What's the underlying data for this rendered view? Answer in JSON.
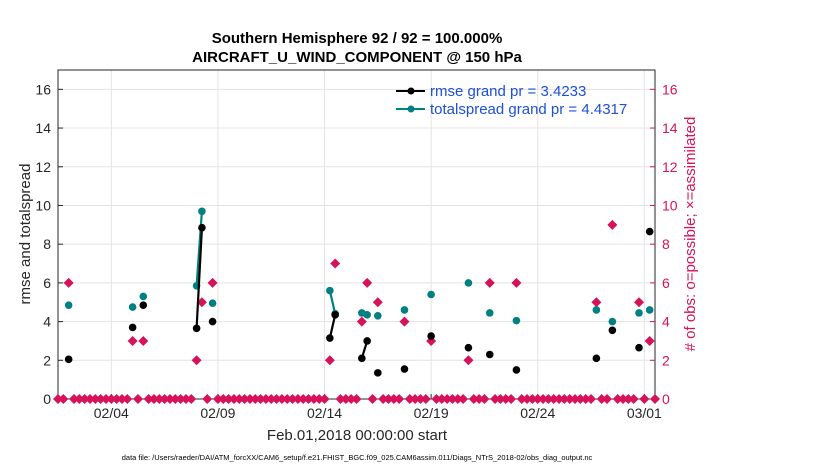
{
  "chart_data": {
    "type": "scatter",
    "title": "Southern Hemisphere 92 / 92 = 100.000%",
    "subtitle": "AIRCRAFT_U_WIND_COMPONENT @ 150 hPa",
    "xlabel": "Feb.01,2018 00:00:00 start",
    "ylabel": "rmse and totalspread",
    "ylabel_right": "# of obs: o=possible; ×=assimilated",
    "footer": "data file: /Users/raeder/DAI/ATM_forcXX/CAM6_setup/f.e21.FHIST_BGC.f09_025.CAM6assim.011/Diags_NTrS_2018-02/obs_diag_output.nc",
    "xlim": [
      1.5,
      29.5
    ],
    "ylim": [
      0,
      17
    ],
    "ylim_right": [
      0,
      17
    ],
    "x_ticks": [
      {
        "value": 4,
        "label": "02/04"
      },
      {
        "value": 9,
        "label": "02/09"
      },
      {
        "value": 14,
        "label": "02/14"
      },
      {
        "value": 19,
        "label": "02/19"
      },
      {
        "value": 24,
        "label": "02/24"
      },
      {
        "value": 29,
        "label": "03/01"
      }
    ],
    "y_ticks": [
      "0",
      "2",
      "4",
      "6",
      "8",
      "10",
      "12",
      "14",
      "16"
    ],
    "y_ticks_right": [
      "0",
      "2",
      "4",
      "6",
      "8",
      "10",
      "12",
      "14",
      "16"
    ],
    "grid": true,
    "legend_position": "top-right",
    "colors": {
      "rmse": "#000000",
      "totalspread": "#008080",
      "obs": "#d6125a"
    },
    "series": [
      {
        "name": "rmse grand pr = 3.4233",
        "key": "rmse",
        "points": [
          [
            2.0,
            2.05
          ],
          [
            5.0,
            3.7
          ],
          [
            5.5,
            4.85
          ],
          [
            8.0,
            3.65
          ],
          [
            8.25,
            8.85
          ],
          [
            8.75,
            4.0
          ],
          [
            14.25,
            3.15
          ],
          [
            14.5,
            4.35
          ],
          [
            15.75,
            2.1
          ],
          [
            16.0,
            3.0
          ],
          [
            16.5,
            1.35
          ],
          [
            17.75,
            1.55
          ],
          [
            19.0,
            3.25
          ],
          [
            20.75,
            2.65
          ],
          [
            21.75,
            2.3
          ],
          [
            23.0,
            1.5
          ],
          [
            26.75,
            2.1
          ],
          [
            27.5,
            3.55
          ],
          [
            28.75,
            2.65
          ],
          [
            29.25,
            8.65
          ]
        ],
        "lines": [
          [
            [
              8.0,
              3.65
            ],
            [
              8.25,
              8.85
            ]
          ],
          [
            [
              14.25,
              3.15
            ],
            [
              14.5,
              4.35
            ]
          ],
          [
            [
              15.75,
              2.1
            ],
            [
              16.0,
              3.0
            ]
          ]
        ]
      },
      {
        "name": "totalspread grand pr = 4.4317",
        "key": "totalspread",
        "points": [
          [
            2.0,
            4.85
          ],
          [
            5.0,
            4.75
          ],
          [
            5.5,
            5.3
          ],
          [
            8.0,
            5.85
          ],
          [
            8.25,
            9.7
          ],
          [
            8.75,
            4.95
          ],
          [
            14.25,
            5.6
          ],
          [
            14.5,
            4.4
          ],
          [
            15.75,
            4.45
          ],
          [
            16.0,
            4.35
          ],
          [
            16.5,
            4.3
          ],
          [
            17.75,
            4.6
          ],
          [
            19.0,
            5.4
          ],
          [
            20.75,
            6.0
          ],
          [
            21.75,
            4.45
          ],
          [
            23.0,
            4.05
          ],
          [
            26.75,
            4.6
          ],
          [
            27.5,
            4.0
          ],
          [
            28.75,
            4.45
          ],
          [
            29.25,
            4.6
          ]
        ],
        "lines": [
          [
            [
              8.0,
              5.85
            ],
            [
              8.25,
              9.7
            ]
          ],
          [
            [
              14.25,
              5.6
            ],
            [
              14.5,
              4.4
            ]
          ],
          [
            [
              15.75,
              4.45
            ],
            [
              16.0,
              4.35
            ]
          ]
        ]
      },
      {
        "name": "# of obs possible / assimilated",
        "key": "obs",
        "axis": "right",
        "points": [
          [
            1.5,
            0
          ],
          [
            1.75,
            0
          ],
          [
            2.0,
            6
          ],
          [
            2.25,
            0
          ],
          [
            2.5,
            0
          ],
          [
            2.75,
            0
          ],
          [
            3.0,
            0
          ],
          [
            3.25,
            0
          ],
          [
            3.5,
            0
          ],
          [
            3.75,
            0
          ],
          [
            4.0,
            0
          ],
          [
            4.25,
            0
          ],
          [
            4.5,
            0
          ],
          [
            4.75,
            0
          ],
          [
            5.0,
            3
          ],
          [
            5.25,
            0
          ],
          [
            5.5,
            3
          ],
          [
            5.75,
            0
          ],
          [
            6.0,
            0
          ],
          [
            6.25,
            0
          ],
          [
            6.5,
            0
          ],
          [
            6.75,
            0
          ],
          [
            7.0,
            0
          ],
          [
            7.25,
            0
          ],
          [
            7.5,
            0
          ],
          [
            7.75,
            0
          ],
          [
            8.0,
            2
          ],
          [
            8.25,
            5
          ],
          [
            8.5,
            0
          ],
          [
            8.75,
            6
          ],
          [
            9.0,
            0
          ],
          [
            9.25,
            0
          ],
          [
            9.5,
            0
          ],
          [
            9.75,
            0
          ],
          [
            10.0,
            0
          ],
          [
            10.25,
            0
          ],
          [
            10.5,
            0
          ],
          [
            10.75,
            0
          ],
          [
            11.0,
            0
          ],
          [
            11.25,
            0
          ],
          [
            11.5,
            0
          ],
          [
            11.75,
            0
          ],
          [
            12.0,
            0
          ],
          [
            12.25,
            0
          ],
          [
            12.5,
            0
          ],
          [
            12.75,
            0
          ],
          [
            13.0,
            0
          ],
          [
            13.25,
            0
          ],
          [
            13.5,
            0
          ],
          [
            13.75,
            0
          ],
          [
            14.0,
            0
          ],
          [
            14.25,
            2
          ],
          [
            14.5,
            7
          ],
          [
            14.75,
            0
          ],
          [
            15.0,
            0
          ],
          [
            15.25,
            0
          ],
          [
            15.5,
            0
          ],
          [
            15.75,
            4
          ],
          [
            16.0,
            6
          ],
          [
            16.25,
            0
          ],
          [
            16.5,
            5
          ],
          [
            16.75,
            0
          ],
          [
            17.0,
            0
          ],
          [
            17.25,
            0
          ],
          [
            17.5,
            0
          ],
          [
            17.75,
            4
          ],
          [
            18.0,
            0
          ],
          [
            18.25,
            0
          ],
          [
            18.5,
            0
          ],
          [
            18.75,
            0
          ],
          [
            19.0,
            3
          ],
          [
            19.25,
            0
          ],
          [
            19.5,
            0
          ],
          [
            19.75,
            0
          ],
          [
            20.0,
            0
          ],
          [
            20.25,
            0
          ],
          [
            20.5,
            0
          ],
          [
            20.75,
            2
          ],
          [
            21.0,
            0
          ],
          [
            21.25,
            0
          ],
          [
            21.5,
            0
          ],
          [
            21.75,
            6
          ],
          [
            22.0,
            0
          ],
          [
            22.25,
            0
          ],
          [
            22.5,
            0
          ],
          [
            22.75,
            0
          ],
          [
            23.0,
            6
          ],
          [
            23.25,
            0
          ],
          [
            23.5,
            0
          ],
          [
            23.75,
            0
          ],
          [
            24.0,
            0
          ],
          [
            24.25,
            0
          ],
          [
            24.5,
            0
          ],
          [
            24.75,
            0
          ],
          [
            25.0,
            0
          ],
          [
            25.25,
            0
          ],
          [
            25.5,
            0
          ],
          [
            25.75,
            0
          ],
          [
            26.0,
            0
          ],
          [
            26.25,
            0
          ],
          [
            26.5,
            0
          ],
          [
            26.75,
            5
          ],
          [
            27.0,
            0
          ],
          [
            27.25,
            0
          ],
          [
            27.5,
            9
          ],
          [
            27.75,
            0
          ],
          [
            28.0,
            0
          ],
          [
            28.25,
            0
          ],
          [
            28.5,
            0
          ],
          [
            28.75,
            5
          ],
          [
            29.0,
            0
          ],
          [
            29.25,
            3
          ],
          [
            29.5,
            0
          ]
        ]
      }
    ]
  }
}
